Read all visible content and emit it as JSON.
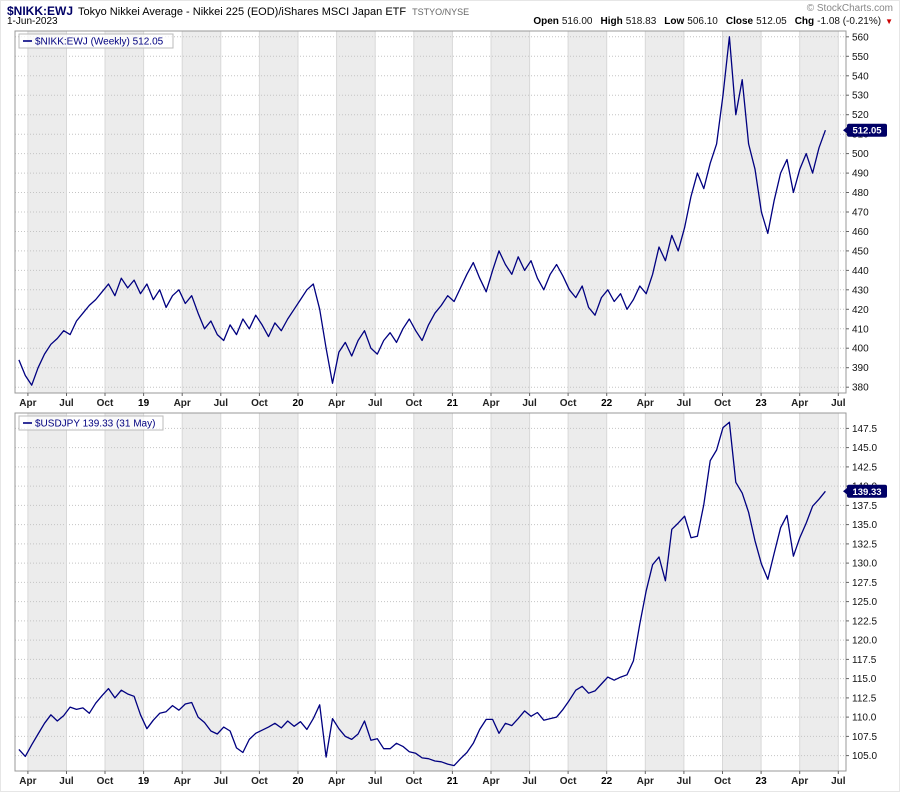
{
  "header": {
    "symbol": "$NIKK:EWJ",
    "title": "Tokyo Nikkei Average - Nikkei 225 (EOD)/iShares MSCI Japan ETF",
    "exchange": "TSTYO/NYSE",
    "copyright": "© StockCharts.com",
    "date": "1-Jun-2023",
    "quote": [
      {
        "label": "Open",
        "value": "516.00"
      },
      {
        "label": "High",
        "value": "518.83"
      },
      {
        "label": "Low",
        "value": "506.10"
      },
      {
        "label": "Close",
        "value": "512.05"
      },
      {
        "label": "Chg",
        "value": "-1.08 (-0.21%)"
      }
    ]
  },
  "icons": {
    "change_down_arrow": "▼"
  },
  "colors": {
    "line": "#000080",
    "badge_bg": "#000066",
    "stripe": "#ececec",
    "grid_h": "#c4c4c4",
    "grid_v": "#d8d8d8",
    "panel_border": "#999999",
    "tick": "#666666"
  },
  "chart_data": [
    {
      "type": "line",
      "panel": "top",
      "series_name": "$NIKK:EWJ",
      "legend": "$NIKK:EWJ (Weekly) 512.05",
      "last_value_label": "512.05",
      "x_start": "Mar-2018",
      "x_end": "Jun-2023",
      "frequency": "weekly (approx. biweekly samples)",
      "x_tick_labels": [
        "Apr",
        "Jul",
        "Oct",
        "19",
        "Apr",
        "Jul",
        "Oct",
        "20",
        "Apr",
        "Jul",
        "Oct",
        "21",
        "Apr",
        "Jul",
        "Oct",
        "22",
        "Apr",
        "Jul",
        "Oct",
        "23",
        "Apr",
        "Jul"
      ],
      "ylim": [
        377,
        563
      ],
      "yticks": [
        380,
        390,
        400,
        410,
        420,
        430,
        440,
        450,
        460,
        470,
        480,
        490,
        500,
        510,
        520,
        530,
        540,
        550,
        560
      ],
      "ytick_decimals": 0,
      "values": [
        394,
        386,
        381,
        390,
        397,
        402,
        405,
        409,
        407,
        414,
        418,
        422,
        425,
        429,
        433,
        427,
        436,
        431,
        435,
        428,
        433,
        425,
        430,
        421,
        427,
        430,
        423,
        427,
        418,
        410,
        414,
        407,
        404,
        412,
        407,
        415,
        410,
        417,
        412,
        406,
        413,
        409,
        415,
        420,
        425,
        430,
        433,
        420,
        400,
        382,
        398,
        403,
        396,
        404,
        409,
        400,
        397,
        404,
        408,
        403,
        410,
        415,
        409,
        404,
        412,
        418,
        422,
        427,
        424,
        431,
        438,
        444,
        436,
        429,
        440,
        450,
        443,
        438,
        447,
        440,
        445,
        436,
        430,
        438,
        443,
        437,
        430,
        426,
        432,
        421,
        417,
        426,
        430,
        424,
        428,
        420,
        425,
        432,
        428,
        438,
        452,
        445,
        458,
        450,
        462,
        478,
        490,
        482,
        495,
        505,
        530,
        560,
        520,
        538,
        505,
        492,
        470,
        459,
        476,
        490,
        497,
        480,
        492,
        500,
        490,
        503,
        512.05
      ]
    },
    {
      "type": "line",
      "panel": "bottom",
      "series_name": "$USDJPY",
      "legend": "$USDJPY 139.33 (31 May)",
      "last_value_label": "139.33",
      "x_start": "Mar-2018",
      "x_end": "Jun-2023",
      "frequency": "weekly (approx. biweekly samples)",
      "x_tick_labels": [
        "Apr",
        "Jul",
        "Oct",
        "19",
        "Apr",
        "Jul",
        "Oct",
        "20",
        "Apr",
        "Jul",
        "Oct",
        "21",
        "Apr",
        "Jul",
        "Oct",
        "22",
        "Apr",
        "Jul",
        "Oct",
        "23",
        "Apr",
        "Jul"
      ],
      "ylim": [
        103.0,
        149.5
      ],
      "yticks": [
        105.0,
        107.5,
        110.0,
        112.5,
        115.0,
        117.5,
        120.0,
        122.5,
        125.0,
        127.5,
        130.0,
        132.5,
        135.0,
        137.5,
        140.0,
        142.5,
        145.0,
        147.5
      ],
      "ytick_decimals": 1,
      "values": [
        105.8,
        104.9,
        106.4,
        107.8,
        109.2,
        110.3,
        109.5,
        110.2,
        111.3,
        111.0,
        111.2,
        110.5,
        111.8,
        112.8,
        113.7,
        112.5,
        113.5,
        113.0,
        112.7,
        110.3,
        108.5,
        109.6,
        110.5,
        110.7,
        111.5,
        110.9,
        111.7,
        111.9,
        110.0,
        109.3,
        108.2,
        107.8,
        108.7,
        108.2,
        106.0,
        105.4,
        107.1,
        107.9,
        108.3,
        108.7,
        109.2,
        108.6,
        109.5,
        108.8,
        109.4,
        108.4,
        109.8,
        111.6,
        104.8,
        109.8,
        108.5,
        107.5,
        107.1,
        107.8,
        109.5,
        107.0,
        107.2,
        105.9,
        105.9,
        106.6,
        106.2,
        105.5,
        105.3,
        104.7,
        104.6,
        104.3,
        104.2,
        103.9,
        103.7,
        104.6,
        105.4,
        106.6,
        108.4,
        109.7,
        109.7,
        107.9,
        109.2,
        108.9,
        109.8,
        110.8,
        110.1,
        110.6,
        109.6,
        109.8,
        110.0,
        111.0,
        112.2,
        113.5,
        114.0,
        113.1,
        113.4,
        114.3,
        115.2,
        114.8,
        115.2,
        115.5,
        117.3,
        122.1,
        126.4,
        129.8,
        130.8,
        127.7,
        134.4,
        135.2,
        136.1,
        133.3,
        133.5,
        137.6,
        143.3,
        144.7,
        147.6,
        148.3,
        140.5,
        139.1,
        136.6,
        132.9,
        129.9,
        127.9,
        131.3,
        134.6,
        136.2,
        130.9,
        133.3,
        135.2,
        137.4,
        138.3,
        139.33
      ]
    }
  ]
}
